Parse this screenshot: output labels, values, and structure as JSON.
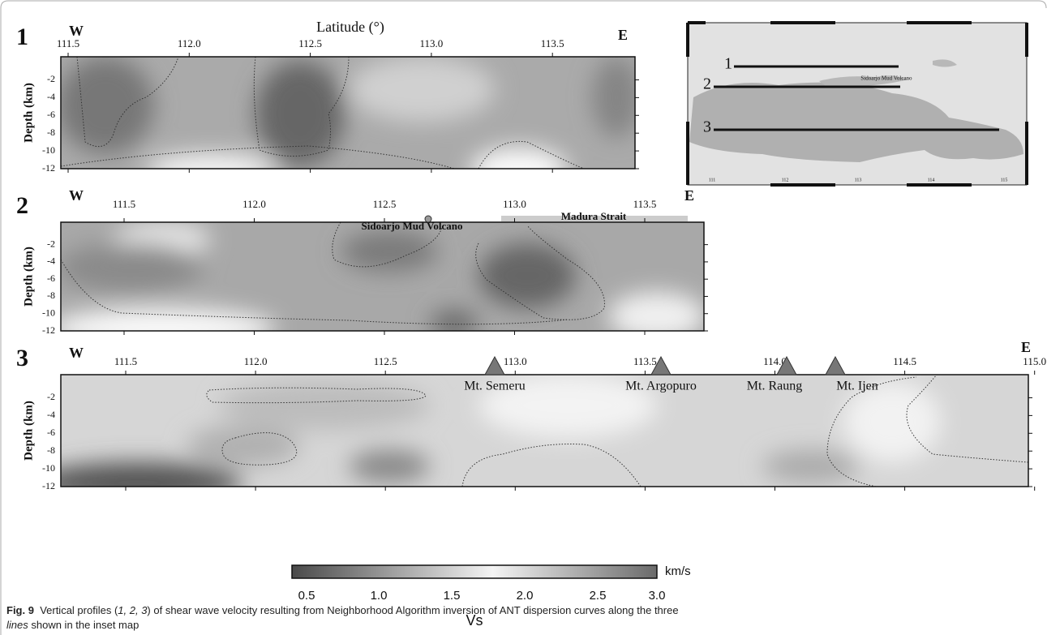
{
  "figure": {
    "panels": [
      {
        "label": "1",
        "west": "W",
        "east": "E",
        "xlabel": "Latitude (°)",
        "ylabel": "Depth (km)",
        "xticks": [
          "111.5",
          "112.0",
          "112.5",
          "113.0",
          "113.5"
        ],
        "yticks": [
          "-2",
          "-4",
          "-6",
          "-8",
          "-10",
          "-12"
        ]
      },
      {
        "label": "2",
        "west": "W",
        "east": "E",
        "ylabel": "Depth (km)",
        "xticks": [
          "111.5",
          "112.0",
          "112.5",
          "113.0",
          "113.5"
        ],
        "yticks": [
          "-2",
          "-4",
          "-6",
          "-8",
          "-10",
          "-12"
        ],
        "annotations": [
          "Sidoarjo Mud Volcano",
          "Madura Strait"
        ]
      },
      {
        "label": "3",
        "west": "W",
        "east": "E",
        "ylabel": "Depth (km)",
        "xticks": [
          "111.5",
          "112.0",
          "112.5",
          "113.0",
          "113.5",
          "114.0",
          "114.5",
          "115.0"
        ],
        "yticks": [
          "-2",
          "-4",
          "-6",
          "-8",
          "-10",
          "-12"
        ],
        "annotations": [
          "Mt. Semeru",
          "Mt. Argopuro",
          "Mt. Raung",
          "Mt. Ijen"
        ]
      }
    ],
    "inset": {
      "lines": [
        "1",
        "2",
        "3"
      ],
      "label": "Sidoarjo Mud Volcano",
      "ticks": [
        "111",
        "112",
        "113",
        "114",
        "115"
      ]
    },
    "colorbar": {
      "unit": "km/s",
      "title": "Vs",
      "ticks": [
        "0.5",
        "1.0",
        "1.5",
        "2.0",
        "2.5",
        "3.0"
      ]
    },
    "caption": {
      "label": "Fig. 9",
      "text_1": "Vertical profiles (",
      "emph_1": "1, 2, 3",
      "text_2": ") of shear wave velocity resulting from Neighborhood Algorithm inversion of ANT dispersion curves along the three",
      "emph_2": "lines",
      "text_3": " shown in the inset map"
    }
  }
}
